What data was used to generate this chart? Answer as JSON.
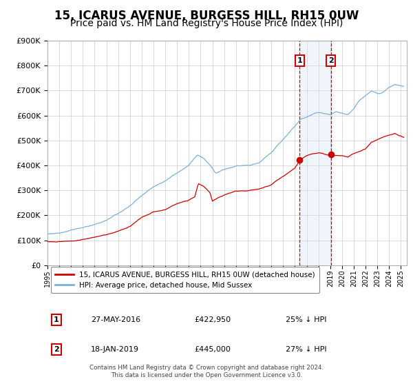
{
  "title": "15, ICARUS AVENUE, BURGESS HILL, RH15 0UW",
  "subtitle": "Price paid vs. HM Land Registry's House Price Index (HPI)",
  "ylim": [
    0,
    900000
  ],
  "yticks": [
    0,
    100000,
    200000,
    300000,
    400000,
    500000,
    600000,
    700000,
    800000,
    900000
  ],
  "ytick_labels": [
    "£0",
    "£100K",
    "£200K",
    "£300K",
    "£400K",
    "£500K",
    "£600K",
    "£700K",
    "£800K",
    "£900K"
  ],
  "xlim_start": 1995.0,
  "xlim_end": 2025.5,
  "hpi_color": "#7ab0d8",
  "price_color": "#cc0000",
  "marker_color": "#cc0000",
  "vline_color": "#cc0000",
  "shade_color": "#cce0f0",
  "title_fontsize": 12,
  "subtitle_fontsize": 10,
  "legend_label_red": "15, ICARUS AVENUE, BURGESS HILL, RH15 0UW (detached house)",
  "legend_label_blue": "HPI: Average price, detached house, Mid Sussex",
  "sale1_date": 2016.41,
  "sale1_price": 422950,
  "sale1_label": "1",
  "sale1_note": "27-MAY-2016",
  "sale1_pct": "25%",
  "sale2_date": 2019.05,
  "sale2_price": 445000,
  "sale2_label": "2",
  "sale2_note": "18-JAN-2019",
  "sale2_pct": "27%",
  "footer1": "Contains HM Land Registry data © Crown copyright and database right 2024.",
  "footer2": "This data is licensed under the Open Government Licence v3.0.",
  "background_color": "#ffffff",
  "grid_color": "#cccccc",
  "keypoints_hpi": [
    [
      1995.0,
      125000
    ],
    [
      1996.0,
      130000
    ],
    [
      1997.0,
      142000
    ],
    [
      1998.0,
      155000
    ],
    [
      1999.0,
      165000
    ],
    [
      2000.0,
      180000
    ],
    [
      2001.0,
      205000
    ],
    [
      2002.0,
      235000
    ],
    [
      2003.0,
      275000
    ],
    [
      2004.0,
      310000
    ],
    [
      2005.0,
      335000
    ],
    [
      2006.0,
      365000
    ],
    [
      2007.0,
      395000
    ],
    [
      2007.7,
      435000
    ],
    [
      2008.3,
      420000
    ],
    [
      2008.8,
      395000
    ],
    [
      2009.3,
      360000
    ],
    [
      2010.0,
      375000
    ],
    [
      2011.0,
      385000
    ],
    [
      2012.0,
      385000
    ],
    [
      2013.0,
      400000
    ],
    [
      2014.0,
      435000
    ],
    [
      2015.0,
      490000
    ],
    [
      2016.0,
      545000
    ],
    [
      2016.5,
      572000
    ],
    [
      2017.0,
      580000
    ],
    [
      2017.5,
      590000
    ],
    [
      2018.0,
      597000
    ],
    [
      2018.5,
      592000
    ],
    [
      2019.0,
      587000
    ],
    [
      2019.5,
      600000
    ],
    [
      2020.0,
      593000
    ],
    [
      2020.5,
      588000
    ],
    [
      2021.0,
      610000
    ],
    [
      2021.5,
      642000
    ],
    [
      2022.0,
      662000
    ],
    [
      2022.5,
      678000
    ],
    [
      2023.0,
      668000
    ],
    [
      2023.5,
      678000
    ],
    [
      2024.0,
      698000
    ],
    [
      2024.5,
      708000
    ],
    [
      2025.2,
      703000
    ]
  ],
  "keypoints_price": [
    [
      1995.0,
      95000
    ],
    [
      1996.0,
      97000
    ],
    [
      1997.0,
      100000
    ],
    [
      1998.0,
      108000
    ],
    [
      1999.0,
      116000
    ],
    [
      2000.0,
      126000
    ],
    [
      2001.0,
      142000
    ],
    [
      2002.0,
      162000
    ],
    [
      2003.0,
      197000
    ],
    [
      2004.0,
      217000
    ],
    [
      2005.0,
      228000
    ],
    [
      2006.0,
      252000
    ],
    [
      2007.0,
      267000
    ],
    [
      2007.5,
      278000
    ],
    [
      2007.8,
      332000
    ],
    [
      2008.3,
      318000
    ],
    [
      2008.8,
      295000
    ],
    [
      2009.0,
      258000
    ],
    [
      2009.5,
      272000
    ],
    [
      2010.0,
      282000
    ],
    [
      2011.0,
      297000
    ],
    [
      2012.0,
      297000
    ],
    [
      2013.0,
      307000
    ],
    [
      2014.0,
      322000
    ],
    [
      2015.0,
      358000
    ],
    [
      2016.0,
      392000
    ],
    [
      2016.41,
      422950
    ],
    [
      2017.0,
      442000
    ],
    [
      2017.5,
      452000
    ],
    [
      2018.0,
      457000
    ],
    [
      2018.5,
      452000
    ],
    [
      2019.05,
      445000
    ],
    [
      2019.5,
      447000
    ],
    [
      2020.0,
      447000
    ],
    [
      2020.5,
      442000
    ],
    [
      2021.0,
      457000
    ],
    [
      2021.5,
      467000
    ],
    [
      2022.0,
      477000
    ],
    [
      2022.5,
      502000
    ],
    [
      2023.0,
      512000
    ],
    [
      2023.5,
      522000
    ],
    [
      2024.0,
      527000
    ],
    [
      2024.5,
      532000
    ],
    [
      2025.2,
      517000
    ]
  ]
}
